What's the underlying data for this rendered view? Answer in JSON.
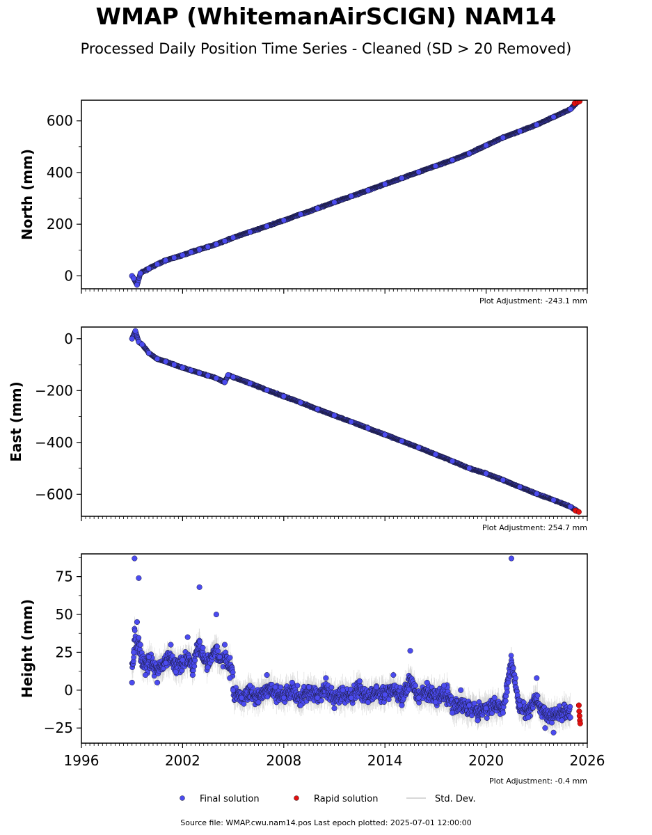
{
  "title": "WMAP (WhitemanAirSCIGN) NAM14",
  "subtitle": "Processed Daily Position Time Series - Cleaned (SD > 20 Removed)",
  "source_text": "Source file: WMAP.cwu.nam14.pos  Last epoch plotted: 2025-07-01 12:00:00",
  "legend": [
    {
      "label": "Final solution",
      "color": "#4b4bf0"
    },
    {
      "label": "Rapid solution",
      "color": "#e01010"
    },
    {
      "label": "Std. Dev.",
      "color": "#cccccc"
    }
  ],
  "colors": {
    "final": "#4b4bf0",
    "rapid": "#e01010",
    "stddev": "#c8c8c8",
    "marker_edge": "#1a1a3a"
  },
  "chart_data": [
    {
      "type": "scatter",
      "ylabel": "North (mm)",
      "adjustment": "Plot Adjustment: -243.1 mm",
      "xlim": [
        1996,
        2026
      ],
      "ylim": [
        -50,
        680
      ],
      "yticks": [
        0,
        200,
        400,
        600
      ],
      "ytick_labels": [
        "0",
        "200",
        "400",
        "600"
      ],
      "xtick_labels_shown": false,
      "series": [
        {
          "kind": "final",
          "x": [
            1999.0,
            1999.1,
            1999.3,
            1999.5,
            2000.0,
            2000.5,
            2001.0,
            2001.5,
            2002.0,
            2002.5,
            2003.0,
            2003.5,
            2004.0,
            2004.5,
            2005.0,
            2006.0,
            2007.0,
            2008.0,
            2009.0,
            2010.0,
            2011.0,
            2012.0,
            2013.0,
            2014.0,
            2015.0,
            2016.0,
            2017.0,
            2018.0,
            2019.0,
            2020.0,
            2021.0,
            2022.0,
            2023.0,
            2024.0,
            2025.0,
            2025.4
          ],
          "y": [
            0,
            -10,
            -35,
            10,
            28,
            45,
            60,
            70,
            80,
            92,
            102,
            112,
            122,
            135,
            148,
            170,
            192,
            215,
            238,
            261,
            285,
            308,
            331,
            355,
            378,
            402,
            425,
            448,
            474,
            505,
            535,
            560,
            585,
            615,
            645,
            672
          ]
        },
        {
          "kind": "rapid",
          "x": [
            2025.25,
            2025.45,
            2025.55
          ],
          "y": [
            668,
            673,
            676
          ]
        }
      ]
    },
    {
      "type": "scatter",
      "ylabel": "East (mm)",
      "adjustment": "Plot Adjustment: 254.7 mm",
      "xlim": [
        1996,
        2026
      ],
      "ylim": [
        -685,
        45
      ],
      "yticks": [
        0,
        -200,
        -400,
        -600
      ],
      "ytick_labels": [
        "0",
        "−200",
        "−400",
        "−600"
      ],
      "xtick_labels_shown": false,
      "series": [
        {
          "kind": "final",
          "x": [
            1999.0,
            1999.2,
            1999.4,
            1999.6,
            2000.0,
            2000.5,
            2001.0,
            2001.5,
            2002.0,
            2002.5,
            2003.0,
            2003.5,
            2004.0,
            2004.5,
            2004.7,
            2005.0,
            2006.0,
            2007.0,
            2008.0,
            2009.0,
            2010.0,
            2011.0,
            2012.0,
            2013.0,
            2014.0,
            2015.0,
            2016.0,
            2017.0,
            2018.0,
            2019.0,
            2020.0,
            2021.0,
            2022.0,
            2023.0,
            2024.0,
            2025.0,
            2025.4
          ],
          "y": [
            0,
            30,
            -12,
            -22,
            -55,
            -78,
            -88,
            -100,
            -112,
            -122,
            -132,
            -142,
            -152,
            -168,
            -140,
            -148,
            -172,
            -198,
            -222,
            -246,
            -272,
            -296,
            -320,
            -345,
            -370,
            -395,
            -420,
            -446,
            -472,
            -500,
            -520,
            -545,
            -572,
            -598,
            -622,
            -648,
            -665
          ]
        },
        {
          "kind": "rapid",
          "x": [
            2025.3,
            2025.5
          ],
          "y": [
            -663,
            -668
          ]
        }
      ]
    },
    {
      "type": "scatter",
      "ylabel": "Height (mm)",
      "adjustment": "Plot Adjustment: -0.4 mm",
      "xlim": [
        1996,
        2026
      ],
      "ylim": [
        -35,
        90
      ],
      "yticks": [
        75,
        50,
        25,
        0,
        -25
      ],
      "ytick_labels": [
        "75",
        "50",
        "25",
        "0",
        "−25"
      ],
      "xtick_labels_shown": true,
      "xticks": [
        1996,
        2002,
        2008,
        2014,
        2020,
        2026
      ],
      "xtick_labels": [
        "1996",
        "2002",
        "2008",
        "2014",
        "2020",
        "2026"
      ],
      "series": [
        {
          "kind": "final",
          "x": [
            1999.0,
            1999.1,
            1999.15,
            1999.3,
            1999.4,
            1999.5,
            1999.8,
            2000.0,
            2000.5,
            2001.0,
            2001.3,
            2001.6,
            2002.0,
            2002.3,
            2002.6,
            2003.0,
            2003.2,
            2003.5,
            2004.0,
            2004.2,
            2004.5,
            2004.8,
            2005.0,
            2005.5,
            2006.0,
            2006.5,
            2007.0,
            2007.5,
            2008.0,
            2008.5,
            2009.0,
            2009.5,
            2010.0,
            2010.5,
            2011.0,
            2011.5,
            2012.0,
            2012.5,
            2013.0,
            2013.5,
            2014.0,
            2014.5,
            2015.0,
            2015.5,
            2016.0,
            2016.5,
            2017.0,
            2017.5,
            2018.0,
            2018.5,
            2019.0,
            2019.5,
            2020.0,
            2020.5,
            2021.0,
            2021.5,
            2022.0,
            2022.5,
            2023.0,
            2023.5,
            2024.0,
            2024.5,
            2025.0
          ],
          "y": [
            5,
            25,
            87,
            45,
            74,
            30,
            10,
            22,
            5,
            18,
            30,
            12,
            20,
            35,
            10,
            68,
            28,
            15,
            50,
            22,
            30,
            8,
            0,
            -5,
            3,
            -8,
            10,
            2,
            -5,
            5,
            -10,
            2,
            -5,
            8,
            -12,
            0,
            -5,
            6,
            -8,
            2,
            -3,
            10,
            -10,
            26,
            -5,
            5,
            -8,
            3,
            -15,
            0,
            -10,
            -20,
            -12,
            -5,
            -15,
            87,
            -10,
            -18,
            8,
            -25,
            -28,
            -20,
            -18
          ]
        },
        {
          "kind": "rapid",
          "x": [
            2025.5,
            2025.52,
            2025.54,
            2025.56,
            2025.58
          ],
          "y": [
            -10,
            -14,
            -17,
            -20,
            -22
          ]
        }
      ]
    }
  ]
}
